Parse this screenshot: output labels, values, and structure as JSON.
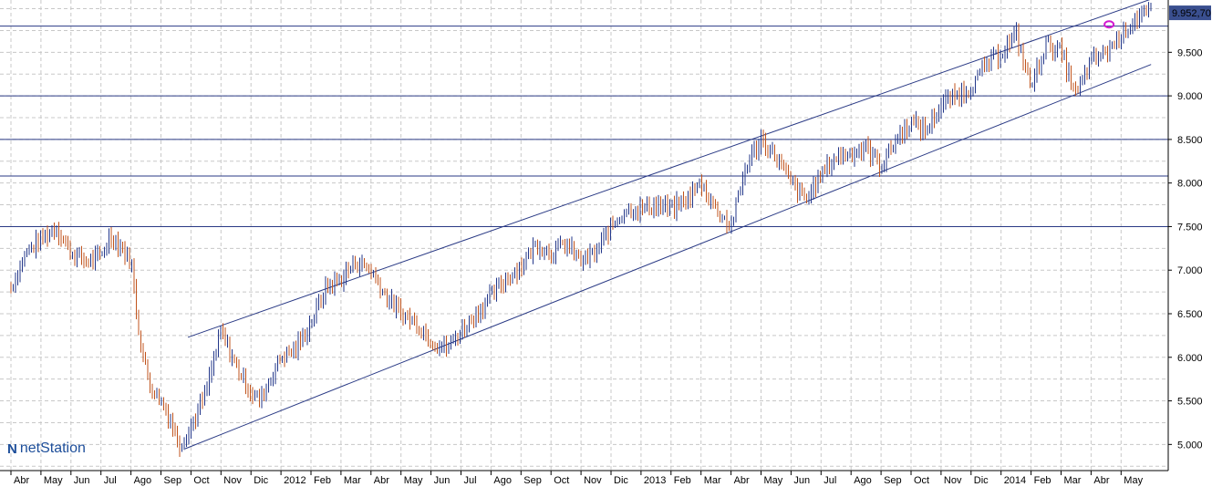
{
  "chart_data": {
    "type": "line",
    "style": "ohlc-bars",
    "ylim": [
      4700,
      10100
    ],
    "y_ticks": [
      "5.000",
      "5.500",
      "6.000",
      "6.500",
      "7.000",
      "7.500",
      "8.000",
      "8.500",
      "9.000",
      "9.500"
    ],
    "y_tick_values": [
      5000,
      5500,
      6000,
      6500,
      7000,
      7500,
      8000,
      8500,
      9000,
      9500
    ],
    "x_labels": [
      "Abr",
      "May",
      "Jun",
      "Jul",
      "Ago",
      "Sep",
      "Oct",
      "Nov",
      "Dic",
      "2012",
      "Feb",
      "Mar",
      "Abr",
      "May",
      "Jun",
      "Jul",
      "Ago",
      "Sep",
      "Oct",
      "Nov",
      "Dic",
      "2013",
      "Feb",
      "Mar",
      "Abr",
      "May",
      "Jun",
      "Jul",
      "Ago",
      "Sep",
      "Oct",
      "Nov",
      "Dic",
      "2014",
      "Feb",
      "Mar",
      "Abr",
      "May"
    ],
    "last_value_label": "9.952,70",
    "last_value": 9952.7,
    "horizontal_levels": [
      9800,
      9000,
      8500,
      8080,
      7500
    ],
    "channel_upper": {
      "from": {
        "month": 5.9,
        "y": 6230
      },
      "to": {
        "month": 38,
        "y": 10110
      }
    },
    "channel_lower": {
      "from": {
        "month": 5.8,
        "y": 4950
      },
      "to": {
        "month": 38,
        "y": 9360
      }
    },
    "marker_month": 36.6,
    "marker_value": 9820,
    "series": [
      {
        "values": [
          [
            0,
            6800
          ],
          [
            0.5,
            7200
          ],
          [
            1,
            7350
          ],
          [
            1.5,
            7500
          ],
          [
            2,
            7200
          ],
          [
            2.5,
            7100
          ],
          [
            3,
            7150
          ],
          [
            3.3,
            7400
          ],
          [
            3.6,
            7300
          ],
          [
            4,
            7100
          ],
          [
            4.3,
            6200
          ],
          [
            4.6,
            5700
          ],
          [
            5,
            5500
          ],
          [
            5.3,
            5300
          ],
          [
            5.6,
            5000
          ],
          [
            6,
            5200
          ],
          [
            6.5,
            5600
          ],
          [
            7,
            6300
          ],
          [
            7.5,
            5900
          ],
          [
            8,
            5600
          ],
          [
            8.3,
            5500
          ],
          [
            8.7,
            5800
          ],
          [
            9,
            6000
          ],
          [
            9.5,
            6100
          ],
          [
            10,
            6400
          ],
          [
            10.5,
            6800
          ],
          [
            11,
            6900
          ],
          [
            11.5,
            7100
          ],
          [
            12,
            7000
          ],
          [
            12.5,
            6700
          ],
          [
            13,
            6500
          ],
          [
            13.5,
            6400
          ],
          [
            14,
            6200
          ],
          [
            14.5,
            6100
          ],
          [
            15,
            6300
          ],
          [
            15.5,
            6500
          ],
          [
            16,
            6700
          ],
          [
            16.5,
            6900
          ],
          [
            17,
            7050
          ],
          [
            17.5,
            7300
          ],
          [
            18,
            7200
          ],
          [
            18.5,
            7300
          ],
          [
            19,
            7100
          ],
          [
            19.5,
            7200
          ],
          [
            20,
            7500
          ],
          [
            20.5,
            7700
          ],
          [
            21,
            7700
          ],
          [
            21.5,
            7750
          ],
          [
            22,
            7700
          ],
          [
            22.5,
            7800
          ],
          [
            23,
            8000
          ],
          [
            23.5,
            7700
          ],
          [
            24,
            7500
          ],
          [
            24.5,
            8200
          ],
          [
            25,
            8500
          ],
          [
            25.5,
            8300
          ],
          [
            26,
            8000
          ],
          [
            26.5,
            7800
          ],
          [
            27,
            8100
          ],
          [
            27.5,
            8300
          ],
          [
            28,
            8350
          ],
          [
            28.5,
            8400
          ],
          [
            29,
            8200
          ],
          [
            29.5,
            8500
          ],
          [
            30,
            8700
          ],
          [
            30.5,
            8600
          ],
          [
            31,
            8900
          ],
          [
            31.5,
            9000
          ],
          [
            32,
            9100
          ],
          [
            32.5,
            9350
          ],
          [
            33,
            9500
          ],
          [
            33.5,
            9700
          ],
          [
            34,
            9100
          ],
          [
            34.5,
            9600
          ],
          [
            35,
            9500
          ],
          [
            35.5,
            9000
          ],
          [
            36,
            9400
          ],
          [
            36.5,
            9500
          ],
          [
            37,
            9700
          ],
          [
            37.5,
            9900
          ],
          [
            38,
            9950
          ]
        ]
      }
    ]
  },
  "logo": {
    "mark": "N",
    "text": "netStation"
  }
}
